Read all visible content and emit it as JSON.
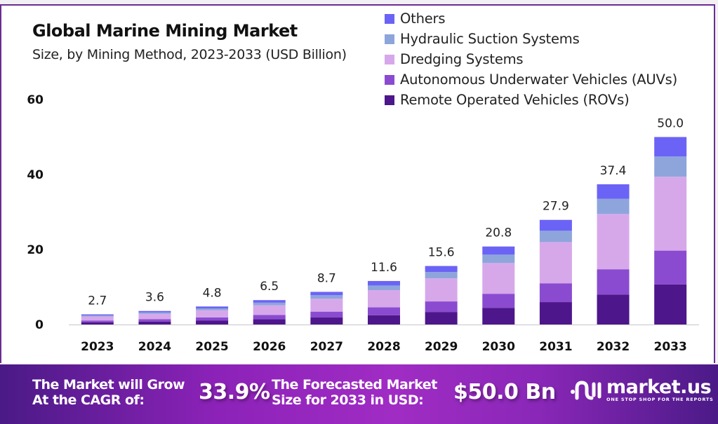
{
  "header": {
    "title": "Global Marine Mining Market",
    "subtitle": "Size, by Mining Method, 2023-2033 (USD Billion)"
  },
  "legend": [
    {
      "label": "Others",
      "color": "#6b63f5"
    },
    {
      "label": "Hydraulic Suction Systems",
      "color": "#8ea5dc"
    },
    {
      "label": "Dredging Systems",
      "color": "#d6a8ea"
    },
    {
      "label": "Autonomous Underwater Vehicles (AUVs)",
      "color": "#8a4bd0"
    },
    {
      "label": "Remote Operated Vehicles (ROVs)",
      "color": "#4d168a"
    }
  ],
  "chart_data": {
    "type": "bar",
    "stacked": true,
    "title": "Global Marine Mining Market",
    "subtitle": "Size, by Mining Method, 2023-2033 (USD Billion)",
    "xlabel": "",
    "ylabel": "",
    "ylim": [
      0,
      60
    ],
    "yticks": [
      "0",
      "20",
      "40",
      "60"
    ],
    "ytick_values": [
      0,
      20,
      40,
      60
    ],
    "grid": false,
    "legend_position": "top-right",
    "categories": [
      "2023",
      "2024",
      "2025",
      "2026",
      "2027",
      "2028",
      "2029",
      "2030",
      "2031",
      "2032",
      "2033"
    ],
    "totals": [
      2.7,
      3.6,
      4.8,
      6.5,
      8.7,
      11.6,
      15.6,
      20.8,
      27.9,
      37.4,
      50.0
    ],
    "total_labels": [
      "2.7",
      "3.6",
      "4.8",
      "6.5",
      "8.7",
      "11.6",
      "15.6",
      "20.8",
      "27.9",
      "37.4",
      "50.0"
    ],
    "series": [
      {
        "name": "Remote Operated Vehicles (ROVs)",
        "color": "#4d168a",
        "values": [
          0.58,
          0.77,
          1.03,
          1.39,
          1.86,
          2.48,
          3.34,
          4.45,
          5.97,
          8.0,
          10.7
        ]
      },
      {
        "name": "Autonomous Underwater Vehicles (AUVs)",
        "color": "#8a4bd0",
        "values": [
          0.49,
          0.65,
          0.86,
          1.17,
          1.57,
          2.09,
          2.81,
          3.74,
          5.02,
          6.73,
          9.0
        ]
      },
      {
        "name": "Dredging Systems",
        "color": "#d6a8ea",
        "values": [
          1.06,
          1.42,
          1.89,
          2.56,
          3.43,
          4.57,
          6.15,
          8.2,
          10.99,
          14.74,
          19.7
        ]
      },
      {
        "name": "Hydraulic Suction Systems",
        "color": "#8ea5dc",
        "values": [
          0.29,
          0.39,
          0.52,
          0.7,
          0.94,
          1.25,
          1.68,
          2.24,
          3.01,
          4.04,
          5.4
        ]
      },
      {
        "name": "Others",
        "color": "#6b63f5",
        "values": [
          0.28,
          0.37,
          0.5,
          0.68,
          0.9,
          1.21,
          1.62,
          2.17,
          2.91,
          3.89,
          5.2
        ]
      }
    ]
  },
  "footer": {
    "cagr_label_line1": "The Market will Grow",
    "cagr_label_line2": "At the CAGR of:",
    "cagr_value": "33.9%",
    "size_label_line1": "The Forecasted Market",
    "size_label_line2": "Size for 2033 in USD:",
    "size_value": "$50.0 Bn",
    "brand_name": "market.us",
    "brand_tagline": "ONE STOP SHOP FOR THE REPORTS"
  }
}
